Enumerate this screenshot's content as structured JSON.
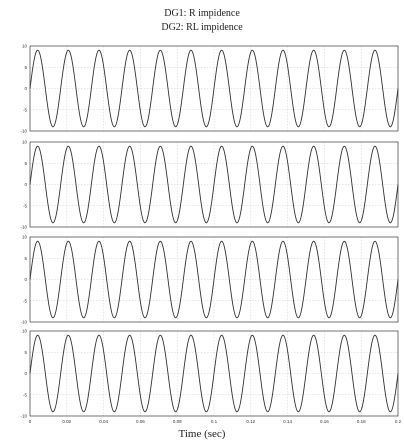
{
  "header": {
    "title_line1": "DG1: R impidence",
    "title_line2": "DG2: RL impidence"
  },
  "xlabel": "Time (sec)",
  "chart_data": [
    {
      "type": "line",
      "ylabel": "",
      "x_range": [
        0,
        0.2
      ],
      "x_ticks": [
        "0",
        "0.02",
        "0.04",
        "0.06",
        "0.08",
        "0.1",
        "0.12",
        "0.14",
        "0.16",
        "0.18",
        "0.2"
      ],
      "y_range": [
        -10,
        10
      ],
      "y_ticks": [
        "10",
        "5",
        "0",
        "-5",
        "-10"
      ],
      "series": [
        {
          "amplitude": 9,
          "frequency_hz": 60,
          "phase_deg": 0
        }
      ],
      "grid": true
    },
    {
      "type": "line",
      "ylabel": "",
      "x_range": [
        0,
        0.2
      ],
      "x_ticks": [
        "0",
        "0.02",
        "0.04",
        "0.06",
        "0.08",
        "0.1",
        "0.12",
        "0.14",
        "0.16",
        "0.18",
        "0.2"
      ],
      "y_range": [
        -10,
        10
      ],
      "y_ticks": [
        "10",
        "5",
        "0",
        "-5",
        "-10"
      ],
      "series": [
        {
          "amplitude": 9,
          "frequency_hz": 60,
          "phase_deg": 0
        }
      ],
      "grid": true
    },
    {
      "type": "line",
      "ylabel": "",
      "x_range": [
        0,
        0.2
      ],
      "x_ticks": [
        "0",
        "0.02",
        "0.04",
        "0.06",
        "0.08",
        "0.1",
        "0.12",
        "0.14",
        "0.16",
        "0.18",
        "0.2"
      ],
      "y_range": [
        -10,
        10
      ],
      "y_ticks": [
        "10",
        "5",
        "0",
        "-5",
        "-10"
      ],
      "series": [
        {
          "amplitude": 9,
          "frequency_hz": 60,
          "phase_deg": 0
        }
      ],
      "grid": true
    },
    {
      "type": "line",
      "ylabel": "",
      "x_range": [
        0,
        0.2
      ],
      "x_ticks": [
        "0",
        "0.02",
        "0.04",
        "0.06",
        "0.08",
        "0.1",
        "0.12",
        "0.14",
        "0.16",
        "0.18",
        "0.2"
      ],
      "y_range": [
        -10,
        10
      ],
      "y_ticks": [
        "10",
        "5",
        "0",
        "-5",
        "-10"
      ],
      "series": [
        {
          "amplitude": 9,
          "frequency_hz": 60,
          "phase_deg": 0
        }
      ],
      "grid": true
    }
  ],
  "colors": {
    "line": "#333333",
    "grid": "#cfcfcf",
    "axes": "#555555"
  }
}
